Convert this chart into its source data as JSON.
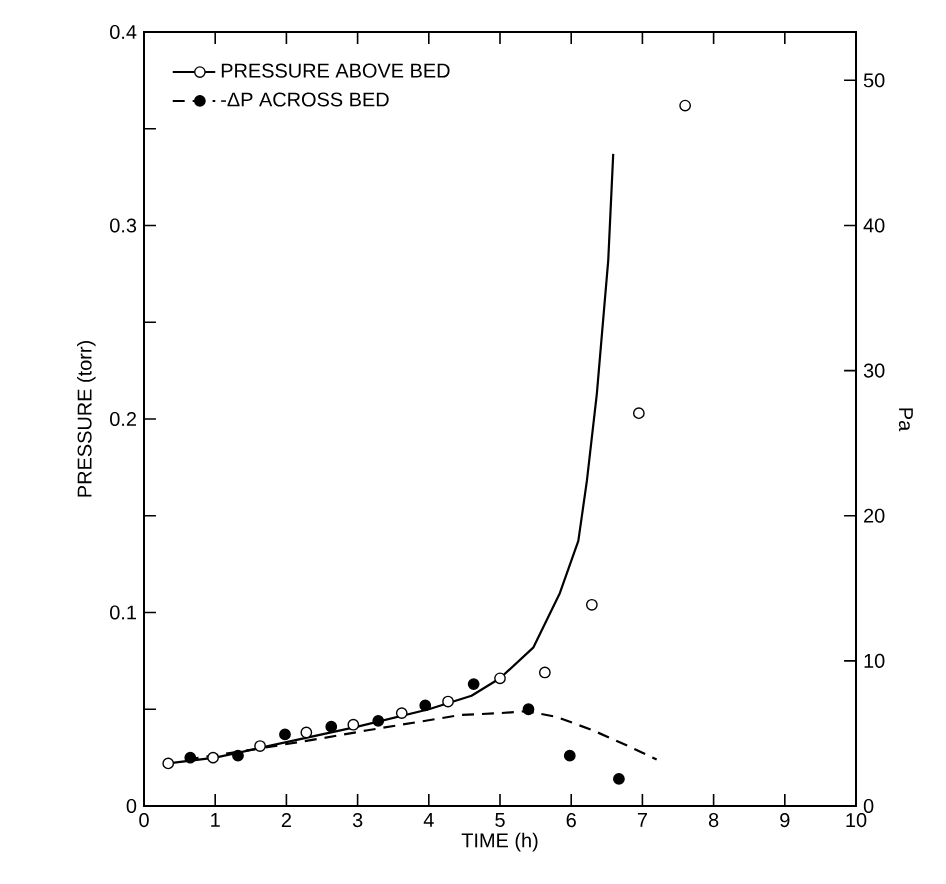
{
  "chart_data": {
    "type": "scatter",
    "xlabel": "TIME (h)",
    "ylabel": "PRESSURE (torr)",
    "y2label": "Pa",
    "legend": "top left",
    "grid": false,
    "xlim": [
      0,
      10
    ],
    "xticks": [
      0,
      1,
      2,
      3,
      4,
      5,
      6,
      7,
      8,
      9,
      10
    ],
    "ylim": [
      0,
      0.4
    ],
    "yticks": [
      0,
      {
        "value": 0.05,
        "label": null
      },
      0.1,
      {
        "value": 0.15,
        "label": null
      },
      0.2,
      {
        "value": 0.25,
        "label": null
      },
      0.3,
      {
        "value": 0.35,
        "label": null
      },
      0.4
    ],
    "y2lim": [
      0,
      53.33
    ],
    "y2ticks": [
      0,
      10,
      20,
      30,
      40,
      50
    ],
    "series": [
      {
        "name": "PRESSURE ABOVE BED",
        "marker": "circle",
        "color": "#ffffff",
        "line_style": "solid",
        "x": [
          0.34,
          0.97,
          1.63,
          2.28,
          2.94,
          3.62,
          4.27,
          5.0,
          5.63,
          6.29,
          6.95,
          7.6
        ],
        "values": [
          0.022,
          0.025,
          0.031,
          0.038,
          0.042,
          0.048,
          0.054,
          0.066,
          0.069,
          0.104,
          0.203,
          0.362
        ]
      },
      {
        "name": "-ΔP ACROSS BED",
        "marker": "circle",
        "color": "#000000",
        "line_style": "dashed",
        "x": [
          0.65,
          1.32,
          1.98,
          2.63,
          3.29,
          3.95,
          4.63,
          5.4,
          5.98,
          6.67
        ],
        "values": [
          0.025,
          0.026,
          0.037,
          0.041,
          0.044,
          0.052,
          0.063,
          0.05,
          0.026,
          0.014
        ]
      },
      {
        "type": "line",
        "marker": "none",
        "color": "#000000",
        "line_style": "solid",
        "x": [
          0.34,
          1.0,
          2.0,
          3.0,
          4.0,
          4.6,
          5.0,
          5.47,
          5.84,
          6.1,
          6.22,
          6.36,
          6.52,
          6.59
        ],
        "values": [
          0.022,
          0.025,
          0.033,
          0.041,
          0.05,
          0.057,
          0.066,
          0.082,
          0.11,
          0.137,
          0.168,
          0.213,
          0.282,
          0.337
        ]
      },
      {
        "type": "line",
        "marker": "none",
        "color": "#000000",
        "line_style": "dashed",
        "x": [
          0.6,
          1.5,
          2.5,
          3.12,
          4.44,
          5.0,
          5.37,
          5.8,
          6.31,
          6.8,
          7.2
        ],
        "values": [
          0.024,
          0.029,
          0.035,
          0.039,
          0.047,
          0.048,
          0.049,
          0.046,
          0.039,
          0.031,
          0.024
        ]
      }
    ]
  }
}
